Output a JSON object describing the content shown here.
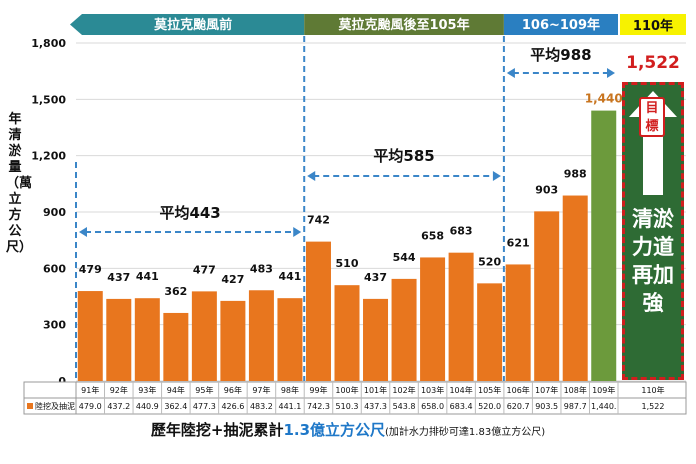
{
  "chart_data": {
    "type": "bar",
    "title": "",
    "ylabel": "年清淤量（萬立方公尺）",
    "ylim": [
      0,
      1800
    ],
    "yticks": [
      0,
      300,
      600,
      900,
      1200,
      1500,
      1800
    ],
    "ytick_labels": [
      "0",
      "300",
      "600",
      "900",
      "1,200",
      "1,500",
      "1,800"
    ],
    "categories": [
      "91年",
      "92年",
      "93年",
      "94年",
      "95年",
      "96年",
      "97年",
      "98年",
      "99年",
      "100年",
      "101年",
      "102年",
      "103年",
      "104年",
      "105年",
      "106年",
      "107年",
      "108年",
      "109年"
    ],
    "values": [
      479.0,
      437.2,
      440.9,
      362.4,
      477.3,
      426.6,
      483.2,
      441.1,
      742.3,
      510.3,
      437.3,
      543.8,
      658.0,
      683.4,
      520.0,
      620.7,
      903.5,
      987.7,
      1440.0
    ],
    "data_labels": [
      "479",
      "437",
      "441",
      "362",
      "477",
      "427",
      "483",
      "441",
      "742",
      "510",
      "437",
      "544",
      "658",
      "683",
      "520",
      "621",
      "903",
      "988",
      "1,440"
    ],
    "table_values": [
      "479.0",
      "437.2",
      "440.9",
      "362.4",
      "477.3",
      "426.6",
      "483.2",
      "441.1",
      "742.3",
      "510.3",
      "437.3",
      "543.8",
      "658.0",
      "683.4",
      "520.0",
      "620.7",
      "903.5",
      "987.7",
      "1,440."
    ],
    "series_name": "陸挖及抽泥",
    "colors": {
      "bar": "#e8761e",
      "highlight": "#6c9a3c",
      "highlight_label": "#c8741e"
    },
    "period_banners": [
      {
        "label": "莫拉克颱風前",
        "from": 0,
        "to": 7,
        "color": "#2b8a95"
      },
      {
        "label": "莫拉克颱風後至105年",
        "from": 8,
        "to": 14,
        "color": "#5f7a35"
      },
      {
        "label": "106~109年",
        "from": 15,
        "to": 18,
        "color": "#2a7fc1"
      }
    ],
    "averages": [
      {
        "label": "平均443",
        "from": 0,
        "to": 7
      },
      {
        "label": "平均585",
        "from": 8,
        "to": 14
      },
      {
        "label": "平均988",
        "from": 15,
        "to": 18
      }
    ],
    "target": {
      "year_label": "110年",
      "value_label": "1,522",
      "table_value": "1,522",
      "badge": "目標",
      "text": "清淤力道再加強"
    }
  },
  "footer": {
    "main": "歷年陸挖+抽泥累計",
    "amount": "1.3億立方公尺",
    "note": "(加計水力排砂可達1.83億立方公尺)"
  }
}
